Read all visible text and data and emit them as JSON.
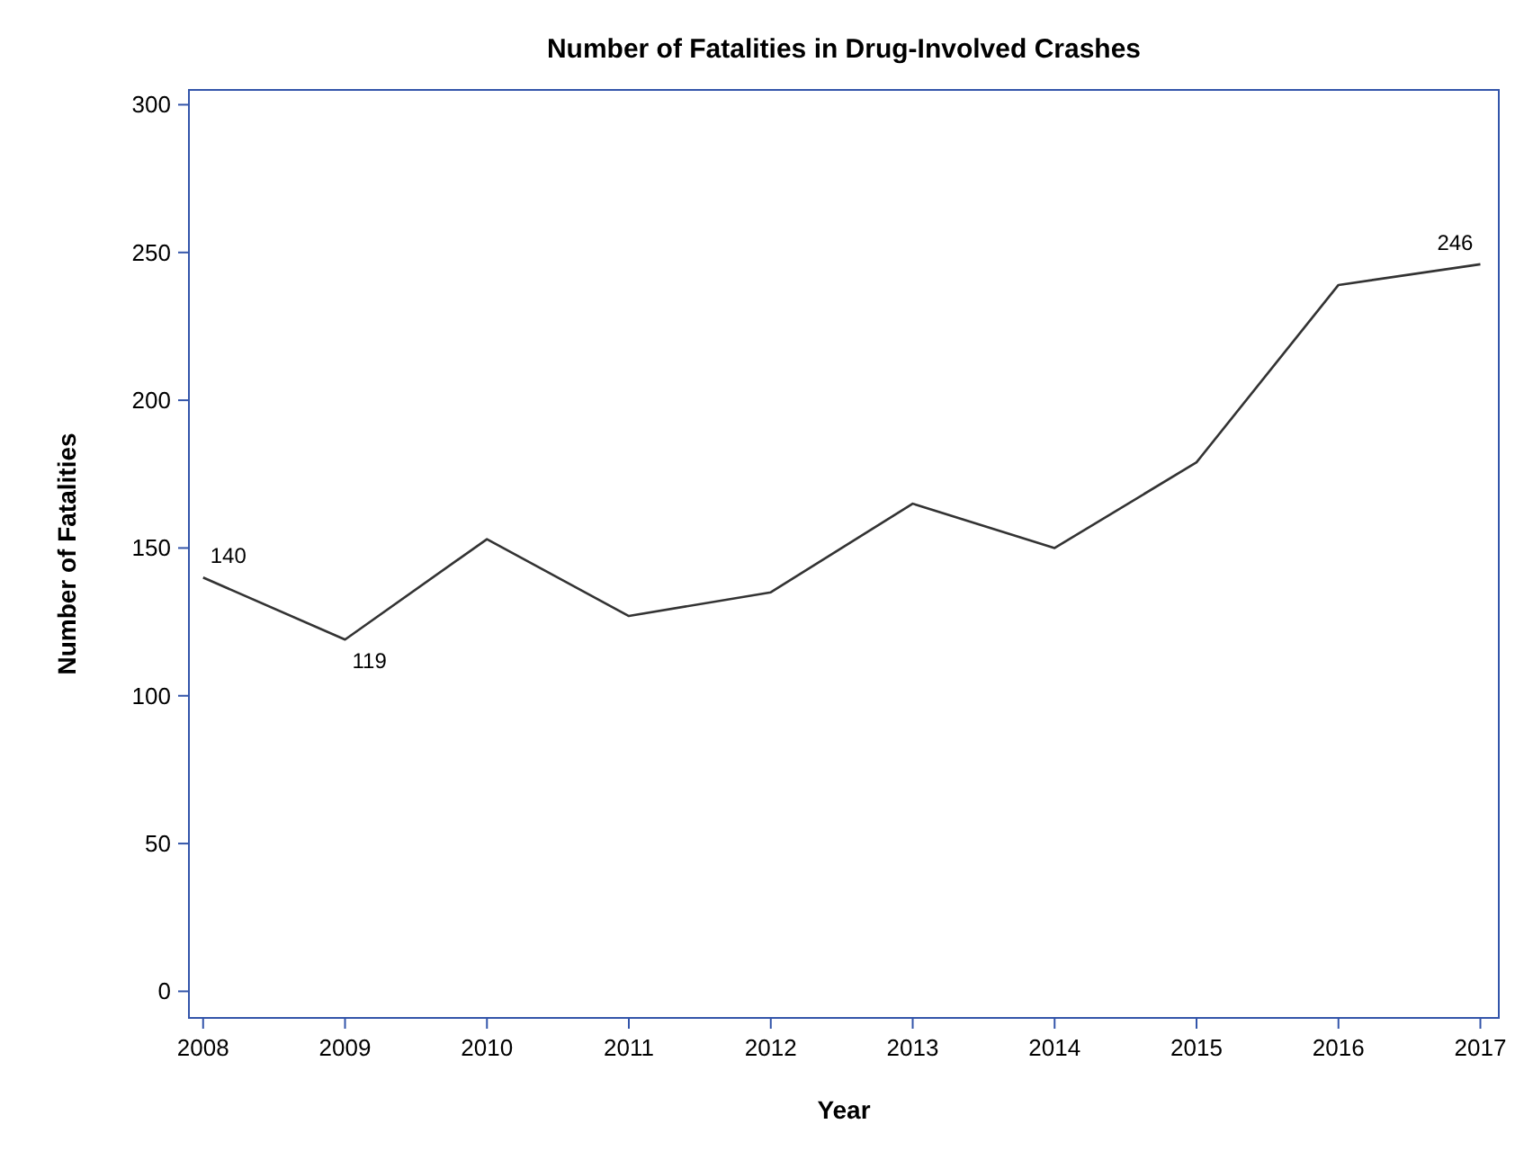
{
  "chart_data": {
    "type": "line",
    "title": "Number of Fatalities in Drug-Involved Crashes",
    "xlabel": "Year",
    "ylabel": "Number of Fatalities",
    "x": [
      2008,
      2009,
      2010,
      2011,
      2012,
      2013,
      2014,
      2015,
      2016,
      2017
    ],
    "values": [
      140,
      119,
      153,
      127,
      135,
      165,
      150,
      179,
      239,
      246
    ],
    "value_labels": [
      "140",
      "119",
      null,
      null,
      null,
      null,
      null,
      null,
      null,
      "246"
    ],
    "color": "#333333",
    "xlim": [
      2007.9,
      2017.13
    ],
    "xticks": [
      2008,
      2009,
      2010,
      2011,
      2012,
      2013,
      2014,
      2015,
      2016,
      2017
    ],
    "ylim": [
      -9,
      305
    ],
    "yticks": [
      0,
      50,
      100,
      150,
      200,
      250,
      300
    ],
    "grid": false,
    "marker": "none",
    "line_style": "solid"
  }
}
